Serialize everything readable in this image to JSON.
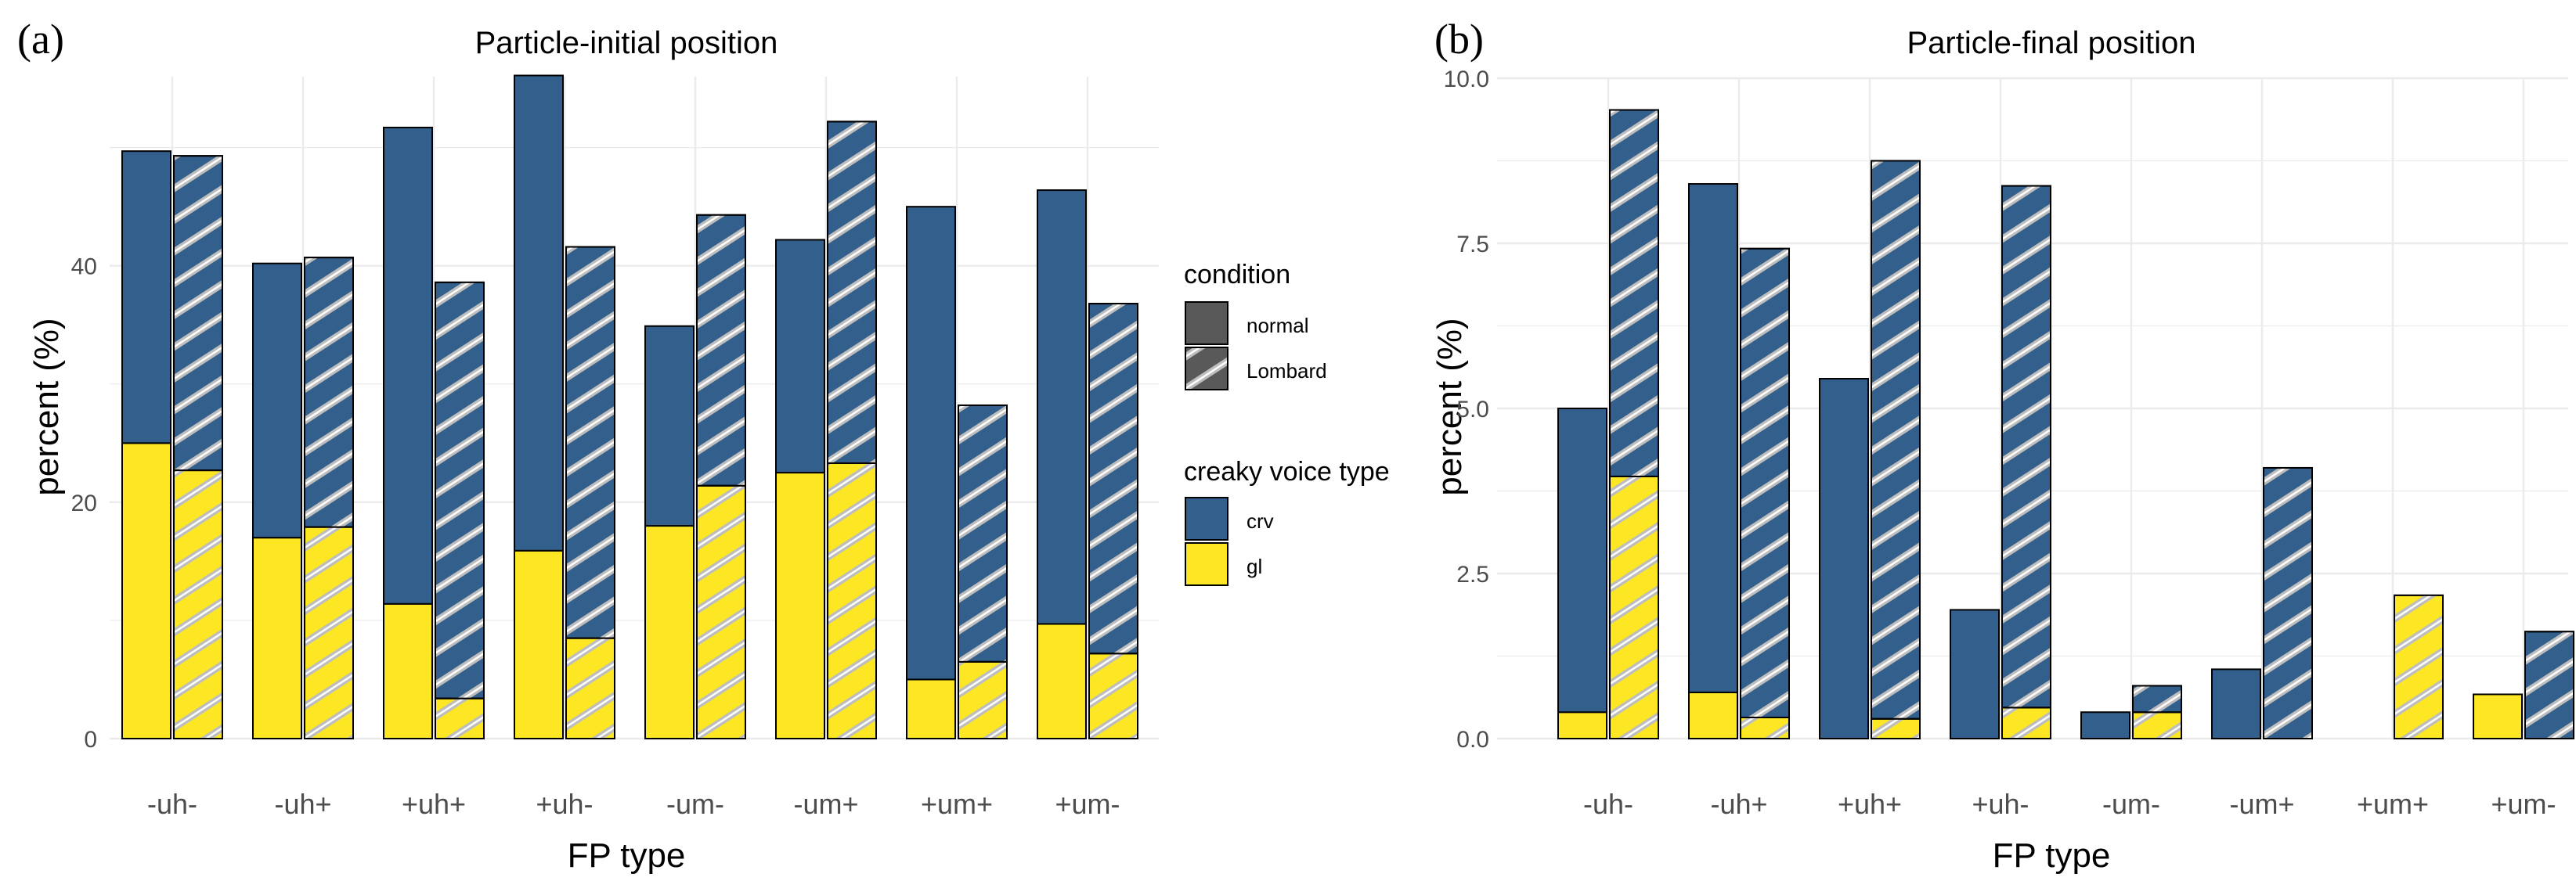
{
  "colors": {
    "crv": "#325f8c",
    "gl": "#fde724",
    "grid": "#ebebeb",
    "outline": "#000000"
  },
  "legend": {
    "condition_title": "condition",
    "condition_items": [
      "normal",
      "Lombard"
    ],
    "voice_title": "creaky voice type",
    "voice_items": [
      "crv",
      "gl"
    ]
  },
  "chart_data": [
    {
      "type": "bar",
      "panel_label": "(a)",
      "title": "Particle-initial position",
      "xlabel": "FP type",
      "ylabel": "percent (%)",
      "ylim": [
        0,
        56
      ],
      "yticks": [
        "0",
        "20",
        "40"
      ],
      "ytick_values": [
        0,
        20,
        40
      ],
      "categories": [
        "-uh-",
        "-uh+",
        "+uh+",
        "+uh-",
        "-um-",
        "-um+",
        "+um+",
        "+um-"
      ],
      "series": [
        {
          "name": "crv normal",
          "values": [
            24.7,
            23.2,
            40.3,
            40.2,
            16.9,
            19.7,
            40.0,
            36.7
          ]
        },
        {
          "name": "gl normal",
          "values": [
            25.0,
            17.0,
            11.4,
            15.9,
            18.0,
            22.5,
            5.0,
            9.7
          ]
        },
        {
          "name": "crv Lombard",
          "values": [
            26.6,
            22.8,
            35.2,
            33.1,
            22.9,
            28.9,
            21.7,
            29.6
          ]
        },
        {
          "name": "gl Lombard",
          "values": [
            22.7,
            17.9,
            3.4,
            8.5,
            21.4,
            23.3,
            6.5,
            7.2
          ]
        }
      ]
    },
    {
      "type": "bar",
      "panel_label": "(b)",
      "title": "Particle-final position",
      "xlabel": "FP type",
      "ylabel": "percent (%)",
      "ylim": [
        0,
        10
      ],
      "yticks": [
        "0.0",
        "2.5",
        "5.0",
        "7.5",
        "10.0"
      ],
      "ytick_values": [
        0,
        2.5,
        5,
        7.5,
        10
      ],
      "categories": [
        "-uh-",
        "-uh+",
        "+uh+",
        "+uh-",
        "-um-",
        "-um+",
        "+um+",
        "+um-"
      ],
      "series": [
        {
          "name": "crv normal",
          "values": [
            4.6,
            7.7,
            5.45,
            1.95,
            0.4,
            1.05,
            0,
            0
          ]
        },
        {
          "name": "gl normal",
          "values": [
            0.4,
            0.7,
            0,
            0,
            0,
            0,
            0,
            0.67
          ]
        },
        {
          "name": "crv Lombard",
          "values": [
            5.55,
            7.1,
            8.45,
            7.9,
            0.4,
            4.1,
            0,
            1.62
          ]
        },
        {
          "name": "gl Lombard",
          "values": [
            3.97,
            0.32,
            0.3,
            0.47,
            0.4,
            0,
            2.17,
            0
          ]
        }
      ]
    }
  ]
}
